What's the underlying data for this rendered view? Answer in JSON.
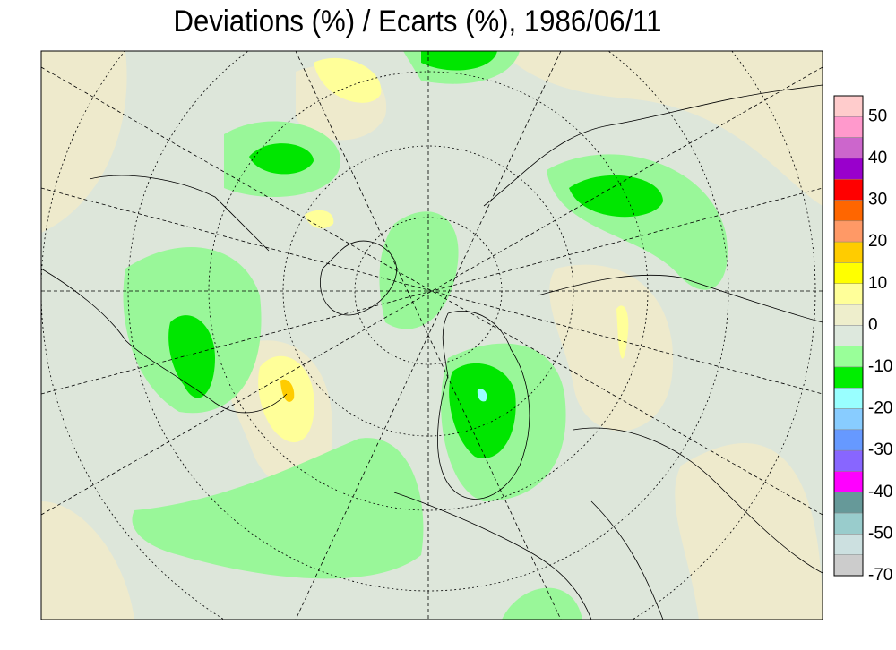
{
  "title": "Deviations (%) / Ecarts (%), 1986/06/11",
  "colorbar": {
    "colors": [
      "#ffcccc",
      "#ff99cc",
      "#cc66cc",
      "#9900cc",
      "#ff0000",
      "#ff6600",
      "#ff9966",
      "#ffcc00",
      "#ffff00",
      "#ffff99",
      "#eeeecc",
      "#dde8dd",
      "#99ff99",
      "#00ee00",
      "#99ffff",
      "#88ccff",
      "#6699ff",
      "#8866ff",
      "#ff00ff",
      "#669999",
      "#99cccc",
      "#cce0e0",
      "#cccccc"
    ],
    "labels": [
      50,
      40,
      30,
      20,
      10,
      0,
      -10,
      -20,
      -30,
      -40,
      -50,
      -70
    ]
  }
}
